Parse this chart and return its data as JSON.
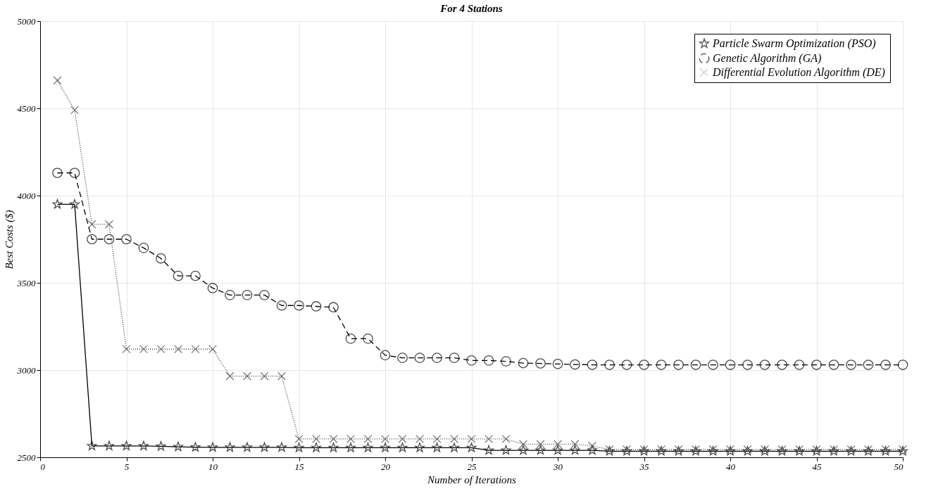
{
  "chart_data": {
    "type": "line",
    "title": "For 4 Stations",
    "xlabel": "Number of Iterations",
    "ylabel": "Best Costs ($)",
    "x": [
      1,
      2,
      3,
      4,
      5,
      6,
      7,
      8,
      9,
      10,
      11,
      12,
      13,
      14,
      15,
      16,
      17,
      18,
      19,
      20,
      21,
      22,
      23,
      24,
      25,
      26,
      27,
      28,
      29,
      30,
      31,
      32,
      33,
      34,
      35,
      36,
      37,
      38,
      39,
      40,
      41,
      42,
      43,
      44,
      45,
      46,
      47,
      48,
      49,
      50
    ],
    "series": [
      {
        "name": "Particle Swarm Optimization (PSO)",
        "color": "#000000",
        "marker": "star",
        "line_style": "solid",
        "values": [
          3950,
          3950,
          2565,
          2565,
          2565,
          2565,
          2563,
          2560,
          2558,
          2557,
          2557,
          2557,
          2557,
          2557,
          2555,
          2555,
          2555,
          2555,
          2555,
          2555,
          2555,
          2555,
          2555,
          2555,
          2555,
          2540,
          2540,
          2540,
          2540,
          2540,
          2540,
          2540,
          2535,
          2535,
          2535,
          2535,
          2535,
          2535,
          2535,
          2535,
          2535,
          2535,
          2535,
          2535,
          2535,
          2535,
          2535,
          2535,
          2535,
          2535
        ]
      },
      {
        "name": "Genetic Algorithm (GA)",
        "color": "#000000",
        "marker": "circle",
        "line_style": "dashed",
        "values": [
          4130,
          4130,
          3750,
          3750,
          3750,
          3700,
          3640,
          3540,
          3540,
          3470,
          3430,
          3430,
          3430,
          3370,
          3370,
          3365,
          3360,
          3180,
          3180,
          3085,
          3070,
          3070,
          3070,
          3070,
          3055,
          3055,
          3050,
          3040,
          3038,
          3035,
          3032,
          3030,
          3030,
          3030,
          3030,
          3030,
          3030,
          3030,
          3030,
          3030,
          3030,
          3030,
          3030,
          3030,
          3030,
          3030,
          3030,
          3030,
          3030,
          3030
        ]
      },
      {
        "name": "Differential Evolution Algorithm (DE)",
        "color": "#404040",
        "marker": "cross",
        "line_style": "dotted",
        "values": [
          4660,
          4490,
          3835,
          3835,
          3120,
          3120,
          3120,
          3120,
          3120,
          3120,
          2965,
          2965,
          2965,
          2965,
          2605,
          2605,
          2605,
          2605,
          2605,
          2605,
          2605,
          2605,
          2605,
          2605,
          2605,
          2605,
          2605,
          2575,
          2575,
          2575,
          2575,
          2565,
          2545,
          2545,
          2545,
          2545,
          2545,
          2545,
          2545,
          2545,
          2545,
          2545,
          2545,
          2545,
          2545,
          2545,
          2545,
          2545,
          2545,
          2545
        ]
      }
    ],
    "xlim": [
      0,
      50
    ],
    "xticks": [
      0,
      5,
      10,
      15,
      20,
      25,
      30,
      35,
      40,
      45,
      50
    ],
    "ylim": [
      2500,
      5000
    ],
    "yticks": [
      2500,
      3000,
      3500,
      4000,
      4500,
      5000
    ],
    "grid": true,
    "legend": "top right"
  }
}
